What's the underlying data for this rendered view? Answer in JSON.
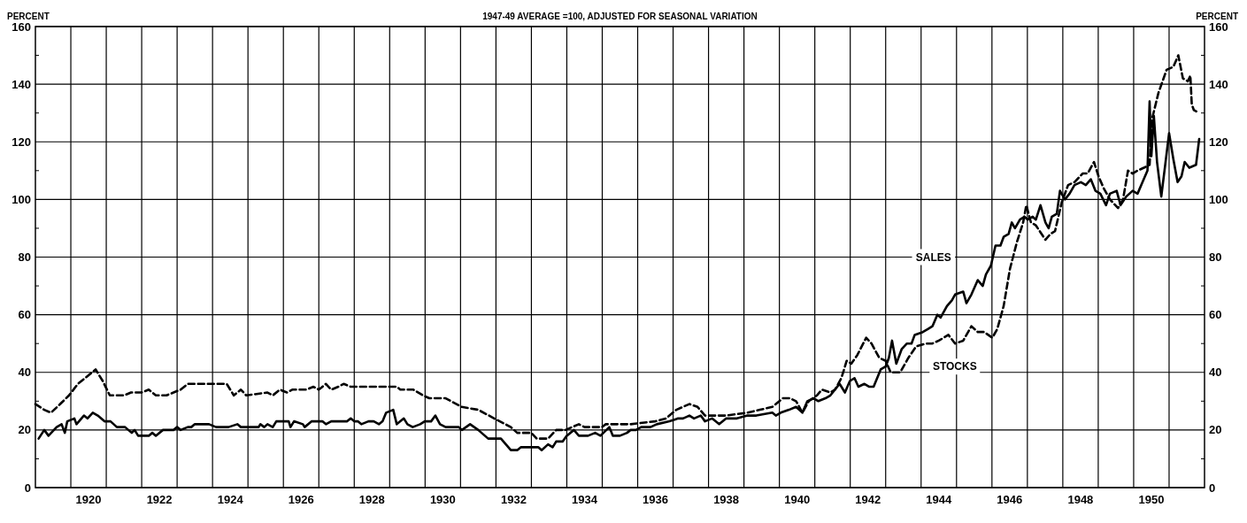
{
  "chart_data": {
    "type": "line",
    "title": "1947-49 AVERAGE =100, ADJUSTED FOR SEASONAL VARIATION",
    "ylabel": "PERCENT",
    "y2label": "PERCENT",
    "xlim": [
      1919,
      1952
    ],
    "xticks": [
      {
        "value": 1920,
        "label": null
      },
      {
        "value": 1921,
        "label": null
      },
      {
        "value": 1922,
        "label": null
      },
      {
        "value": 1923,
        "label": null
      },
      {
        "value": 1924,
        "label": null
      },
      {
        "value": 1925,
        "label": null
      },
      {
        "value": 1926,
        "label": null
      },
      {
        "value": 1927,
        "label": null
      },
      {
        "value": 1928,
        "label": null
      },
      {
        "value": 1929,
        "label": null
      },
      {
        "value": 1930,
        "label": null
      },
      {
        "value": 1931,
        "label": null
      },
      {
        "value": 1932,
        "label": null
      },
      {
        "value": 1933,
        "label": null
      },
      {
        "value": 1934,
        "label": null
      },
      {
        "value": 1935,
        "label": null
      },
      {
        "value": 1936,
        "label": null
      },
      {
        "value": 1937,
        "label": null
      },
      {
        "value": 1938,
        "label": null
      },
      {
        "value": 1939,
        "label": null
      },
      {
        "value": 1940,
        "label": null
      },
      {
        "value": 1941,
        "label": null
      },
      {
        "value": 1942,
        "label": null
      },
      {
        "value": 1943,
        "label": null
      },
      {
        "value": 1944,
        "label": null
      },
      {
        "value": 1945,
        "label": null
      },
      {
        "value": 1946,
        "label": null
      },
      {
        "value": 1947,
        "label": null
      },
      {
        "value": 1948,
        "label": null
      },
      {
        "value": 1949,
        "label": null
      },
      {
        "value": 1950,
        "label": null
      },
      {
        "value": 1951,
        "label": null
      },
      {
        "value": 1920.5,
        "label": "1920"
      },
      {
        "value": 1922.5,
        "label": "1922"
      },
      {
        "value": 1924.5,
        "label": "1924"
      },
      {
        "value": 1926.5,
        "label": "1926"
      },
      {
        "value": 1928.5,
        "label": "1928"
      },
      {
        "value": 1930.5,
        "label": "1930"
      },
      {
        "value": 1932.5,
        "label": "1932"
      },
      {
        "value": 1934.5,
        "label": "1934"
      },
      {
        "value": 1936.5,
        "label": "1936"
      },
      {
        "value": 1938.5,
        "label": "1938"
      },
      {
        "value": 1940.5,
        "label": "1940"
      },
      {
        "value": 1942.5,
        "label": "1942"
      },
      {
        "value": 1944.5,
        "label": "1944"
      },
      {
        "value": 1946.5,
        "label": "1946"
      },
      {
        "value": 1948.5,
        "label": "1948"
      },
      {
        "value": 1950.5,
        "label": "1950"
      }
    ],
    "ylim": [
      0,
      160
    ],
    "yticks": [
      0,
      20,
      40,
      60,
      80,
      100,
      120,
      140,
      160,
      {
        "value": 10,
        "label": null
      },
      {
        "value": 30,
        "label": null
      },
      {
        "value": 50,
        "label": null
      },
      {
        "value": 70,
        "label": null
      },
      {
        "value": 90,
        "label": null
      },
      {
        "value": 110,
        "label": null
      },
      {
        "value": 130,
        "label": null
      },
      {
        "value": 150,
        "label": null
      }
    ],
    "y2lim": [
      0,
      160
    ],
    "y2ticks": [
      0,
      20,
      40,
      60,
      80,
      100,
      120,
      140,
      160,
      {
        "value": 10,
        "label": null
      },
      {
        "value": 30,
        "label": null
      },
      {
        "value": 50,
        "label": null
      },
      {
        "value": 70,
        "label": null
      },
      {
        "value": 90,
        "label": null
      },
      {
        "value": 110,
        "label": null
      },
      {
        "value": 130,
        "label": null
      },
      {
        "value": 150,
        "label": null
      }
    ],
    "grid": true,
    "series": [
      {
        "name": "SALES",
        "color": "#000000",
        "line_style": "solid",
        "x": [
          1919.09,
          1919.25,
          1919.37,
          1919.6,
          1919.74,
          1919.83,
          1919.9,
          1920.1,
          1920.16,
          1920.37,
          1920.47,
          1920.62,
          1920.76,
          1920.95,
          1921.12,
          1921.3,
          1921.53,
          1921.72,
          1921.8,
          1921.9,
          1922.2,
          1922.3,
          1922.4,
          1922.6,
          1922.9,
          1923.0,
          1923.1,
          1923.3,
          1923.4,
          1923.5,
          1923.6,
          1923.7,
          1923.9,
          1924.1,
          1924.45,
          1924.7,
          1924.8,
          1925.3,
          1925.35,
          1925.46,
          1925.55,
          1925.7,
          1925.8,
          1926.15,
          1926.2,
          1926.3,
          1926.55,
          1926.6,
          1926.8,
          1927.1,
          1927.2,
          1927.35,
          1927.8,
          1927.9,
          1928.0,
          1928.1,
          1928.2,
          1928.4,
          1928.55,
          1928.7,
          1928.8,
          1928.9,
          1929.1,
          1929.2,
          1929.4,
          1929.5,
          1929.65,
          1929.86,
          1929.99,
          1930.17,
          1930.29,
          1930.42,
          1930.58,
          1930.95,
          1931.04,
          1931.27,
          1931.5,
          1931.78,
          1932.14,
          1932.42,
          1932.6,
          1932.7,
          1933.2,
          1933.29,
          1933.47,
          1933.6,
          1933.7,
          1933.88,
          1934.0,
          1934.2,
          1934.34,
          1934.6,
          1934.8,
          1934.95,
          1935.2,
          1935.3,
          1935.5,
          1935.7,
          1935.8,
          1935.95,
          1936.1,
          1936.36,
          1936.54,
          1936.9,
          1937.14,
          1937.28,
          1937.46,
          1937.59,
          1937.78,
          1937.9,
          1938.1,
          1938.3,
          1938.5,
          1938.8,
          1939.1,
          1939.35,
          1939.8,
          1939.9,
          1940.04,
          1940.27,
          1940.47,
          1940.65,
          1940.79,
          1940.97,
          1941.1,
          1941.3,
          1941.44,
          1941.57,
          1941.7,
          1941.85,
          1941.99,
          1942.12,
          1942.23,
          1942.4,
          1942.54,
          1942.66,
          1942.86,
          1943.0,
          1943.09,
          1943.18,
          1943.3,
          1943.45,
          1943.6,
          1943.73,
          1943.82,
          1944.05,
          1944.19,
          1944.32,
          1944.46,
          1944.55,
          1944.73,
          1944.87,
          1944.96,
          1945.19,
          1945.28,
          1945.42,
          1945.6,
          1945.74,
          1945.83,
          1945.97,
          1946.1,
          1946.24,
          1946.33,
          1946.47,
          1946.56,
          1946.65,
          1946.79,
          1946.92,
          1947.01,
          1947.15,
          1947.24,
          1947.37,
          1947.51,
          1947.6,
          1947.69,
          1947.83,
          1947.92,
          1948.06,
          1948.19,
          1948.33,
          1948.51,
          1948.65,
          1948.79,
          1948.92,
          1949.06,
          1949.22,
          1949.33,
          1949.52,
          1949.63,
          1949.79,
          1949.97,
          1950.11,
          1950.25,
          1950.39,
          1950.45,
          1950.5,
          1950.57,
          1950.66,
          1950.78,
          1950.89,
          1951.0,
          1951.12,
          1951.24,
          1951.35,
          1951.44,
          1951.57,
          1951.76,
          1951.85
        ],
        "values": [
          17,
          20,
          18,
          21,
          22,
          19,
          23,
          24,
          22,
          25,
          24,
          26,
          25,
          23,
          23,
          21,
          21,
          19,
          20,
          18,
          18,
          19,
          18,
          20,
          20,
          21,
          20,
          21,
          21,
          22,
          22,
          22,
          22,
          21,
          21,
          22,
          21,
          21,
          22,
          21,
          22,
          21,
          23,
          23,
          21,
          23,
          22,
          21,
          23,
          23,
          22,
          23,
          23,
          24,
          23,
          23,
          22,
          23,
          23,
          22,
          23,
          26,
          27,
          22,
          24,
          22,
          21,
          22,
          23,
          23,
          25,
          22,
          21,
          21,
          20,
          22,
          20,
          17,
          17,
          13,
          13,
          14,
          14,
          13,
          15,
          14,
          16,
          16,
          18,
          20,
          18,
          18,
          19,
          18,
          21,
          18,
          18,
          19,
          20,
          20,
          21,
          21,
          22,
          23,
          24,
          24,
          25,
          24,
          25,
          23,
          24,
          22,
          24,
          24,
          25,
          25,
          26,
          25,
          26,
          27,
          28,
          26,
          30,
          31,
          30,
          31,
          32,
          34,
          36,
          33,
          37,
          38,
          35,
          36,
          35,
          35,
          41,
          42,
          45,
          51,
          43,
          48,
          50,
          50,
          53,
          54,
          55,
          56,
          60,
          59,
          63,
          65,
          67,
          68,
          64,
          67,
          72,
          70,
          74,
          77,
          84,
          84,
          87,
          88,
          92,
          90,
          93,
          94,
          93,
          94,
          93,
          98,
          92,
          90,
          94,
          95,
          103,
          100,
          102,
          105,
          106,
          105,
          107,
          103,
          102,
          98,
          102,
          103,
          98,
          101,
          103,
          102,
          106,
          110,
          134,
          115,
          129,
          113,
          101,
          112,
          123,
          114,
          106,
          108,
          113,
          111,
          112,
          121
        ]
      },
      {
        "name": "STOCKS",
        "color": "#000000",
        "line_style": "dashed",
        "x": [
          1919.0,
          1919.25,
          1919.44,
          1919.7,
          1919.95,
          1920.2,
          1920.4,
          1920.7,
          1920.9,
          1921.1,
          1921.5,
          1921.7,
          1922.0,
          1922.2,
          1922.4,
          1922.58,
          1922.7,
          1922.9,
          1923.1,
          1923.3,
          1924.4,
          1924.6,
          1924.8,
          1924.95,
          1925.55,
          1925.7,
          1925.9,
          1926.1,
          1926.25,
          1926.65,
          1926.85,
          1927.0,
          1927.2,
          1927.35,
          1927.55,
          1927.7,
          1927.9,
          1929.2,
          1929.3,
          1929.67,
          1929.94,
          1930.12,
          1930.58,
          1931.03,
          1931.5,
          1931.95,
          1932.42,
          1932.6,
          1933.0,
          1933.15,
          1933.47,
          1933.7,
          1933.96,
          1934.34,
          1934.5,
          1934.99,
          1935.1,
          1935.8,
          1936.5,
          1936.8,
          1937.09,
          1937.46,
          1937.69,
          1937.9,
          1938.5,
          1939.1,
          1939.45,
          1939.8,
          1940.1,
          1940.3,
          1940.47,
          1940.65,
          1940.83,
          1941.06,
          1941.2,
          1941.44,
          1941.57,
          1941.75,
          1941.9,
          1942.03,
          1942.2,
          1942.45,
          1942.6,
          1942.82,
          1943.0,
          1943.14,
          1943.41,
          1943.64,
          1943.86,
          1944.14,
          1944.32,
          1944.5,
          1944.77,
          1944.96,
          1945.19,
          1945.42,
          1945.6,
          1945.78,
          1946.01,
          1946.15,
          1946.33,
          1946.51,
          1946.7,
          1946.88,
          1946.97,
          1947.1,
          1947.24,
          1947.51,
          1947.65,
          1947.78,
          1947.97,
          1948.15,
          1948.33,
          1948.56,
          1948.7,
          1948.88,
          1949.01,
          1949.15,
          1949.33,
          1949.56,
          1949.7,
          1949.84,
          1949.97,
          1950.11,
          1950.29,
          1950.45,
          1950.52,
          1950.7,
          1950.93,
          1951.12,
          1951.26,
          1951.39,
          1951.53,
          1951.6,
          1951.64,
          1951.7,
          1951.85
        ],
        "values": [
          29,
          27,
          26,
          29,
          32,
          36,
          38,
          41,
          37,
          32,
          32,
          33,
          33,
          34,
          32,
          32,
          32,
          33,
          34,
          36,
          36,
          32,
          34,
          32,
          33,
          32,
          34,
          33,
          34,
          34,
          35,
          34,
          36,
          34,
          35,
          36,
          35,
          35,
          34,
          34,
          32,
          31,
          31,
          28,
          27,
          24,
          21,
          19,
          19,
          17,
          17,
          20,
          20,
          22,
          21,
          21,
          22,
          22,
          23,
          24,
          27,
          29,
          28,
          25,
          25,
          26,
          27,
          28,
          31,
          31,
          30,
          26,
          30,
          32,
          34,
          33,
          34,
          38,
          44,
          43,
          46,
          52,
          50,
          45,
          44,
          40,
          40,
          45,
          49,
          50,
          50,
          51,
          53,
          50,
          51,
          56,
          54,
          54,
          52,
          55,
          63,
          76,
          85,
          92,
          98,
          92,
          91,
          86,
          88,
          89,
          99,
          105,
          106,
          109,
          109,
          113,
          108,
          104,
          100,
          97,
          100,
          110,
          109,
          110,
          111,
          112,
          128,
          137,
          145,
          146,
          150,
          142,
          141,
          143,
          133,
          131,
          130
        ]
      }
    ]
  }
}
